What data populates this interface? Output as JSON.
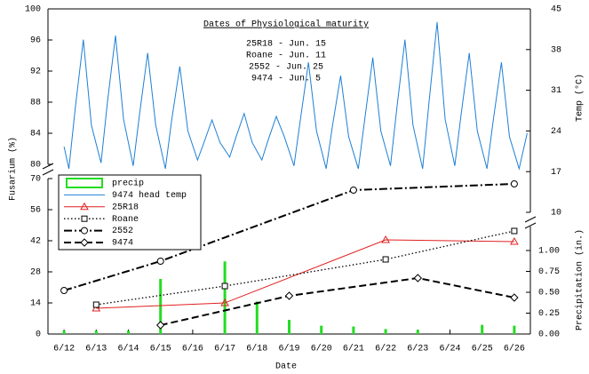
{
  "chart_data": {
    "type": "line",
    "xlabel": "Date",
    "ylabel": "Fusarium (%)",
    "y2label": "Temp (°C)",
    "y3label": "Precipitation (in.)",
    "annotation": {
      "title": "Dates of Physiological maturity",
      "lines": [
        "25R18 - Jun. 15",
        "Roane - Jun. 11",
        "2552 - Jun. 25",
        "9474 - Jun. 5"
      ]
    },
    "xlim": [
      11.5,
      26.5
    ],
    "xticks": [
      {
        "value": 12,
        "label": "6/12"
      },
      {
        "value": 13,
        "label": "6/13"
      },
      {
        "value": 14,
        "label": "6/14"
      },
      {
        "value": 15,
        "label": "6/15"
      },
      {
        "value": 16,
        "label": "6/16"
      },
      {
        "value": 17,
        "label": "6/17"
      },
      {
        "value": 18,
        "label": "6/18"
      },
      {
        "value": 19,
        "label": "6/19"
      },
      {
        "value": 20,
        "label": "6/20"
      },
      {
        "value": 21,
        "label": "6/21"
      },
      {
        "value": 22,
        "label": "6/22"
      },
      {
        "value": 23,
        "label": "6/23"
      },
      {
        "value": 24,
        "label": "6/24"
      },
      {
        "value": 25,
        "label": "6/25"
      },
      {
        "value": 26,
        "label": "6/26"
      }
    ],
    "ylim": [
      0,
      70
    ],
    "yticks": [
      0,
      14,
      28,
      42,
      56,
      70
    ],
    "ylim_upper": [
      80,
      100
    ],
    "yticks_upper": [
      80,
      84,
      88,
      92,
      96,
      100
    ],
    "y2lim": [
      10,
      45
    ],
    "y2ticks": [
      10,
      17,
      24,
      31,
      38,
      45
    ],
    "y3lim": [
      0,
      1
    ],
    "y3ticks": [
      {
        "value": 0,
        "label": "0.00"
      },
      {
        "value": 0.25,
        "label": "0.25"
      },
      {
        "value": 0.5,
        "label": "0.50"
      },
      {
        "value": 0.75,
        "label": "0.75"
      },
      {
        "value": 1,
        "label": "1.00"
      }
    ],
    "series": [
      {
        "name": "precip",
        "kind": "bar",
        "axis": "y3",
        "color": "#22dd22",
        "x": [
          12,
          13,
          14,
          15,
          17,
          18,
          19,
          20,
          21,
          22,
          23,
          25,
          26
        ],
        "values": [
          0.04,
          0.04,
          0.04,
          0.66,
          0.87,
          0.39,
          0.17,
          0.1,
          0.09,
          0.06,
          0.05,
          0.11,
          0.1
        ]
      },
      {
        "name": "9474 head temp",
        "kind": "line",
        "axis": "y2",
        "color": "#1e7fd6",
        "dash": "solid",
        "x": [
          12.0,
          12.15,
          12.35,
          12.6,
          12.85,
          13.15,
          13.35,
          13.6,
          13.85,
          14.15,
          14.35,
          14.6,
          14.85,
          15.15,
          15.35,
          15.6,
          15.85,
          16.15,
          16.35,
          16.6,
          16.85,
          17.15,
          17.35,
          17.6,
          17.85,
          18.15,
          18.35,
          18.6,
          18.85,
          19.15,
          19.35,
          19.6,
          19.85,
          20.15,
          20.35,
          20.6,
          20.85,
          21.15,
          21.35,
          21.6,
          21.85,
          22.15,
          22.35,
          22.6,
          22.85,
          23.15,
          23.35,
          23.6,
          23.85,
          24.15,
          24.35,
          24.6,
          24.85,
          25.15,
          25.35,
          25.6,
          25.85,
          26.15,
          26.4
        ],
        "values": [
          21.3,
          17.5,
          28,
          39.7,
          25,
          18.5,
          29,
          40.4,
          26,
          18,
          27,
          37.4,
          25,
          17.5,
          26,
          35.1,
          24,
          19,
          22,
          25.9,
          22,
          19.5,
          23,
          27,
          22,
          19,
          22.5,
          26.5,
          23,
          18,
          26,
          35.8,
          24,
          17.5,
          25,
          33.5,
          23,
          17.5,
          26,
          36.6,
          24,
          18,
          28,
          39.7,
          25,
          17.5,
          29,
          42.7,
          26,
          18,
          27,
          37.4,
          24,
          17.5,
          26,
          35.8,
          23,
          17.5,
          23.6
        ]
      },
      {
        "name": "25R18",
        "kind": "line",
        "axis": "y",
        "color": "#e02020",
        "dash": "solid",
        "marker": "triangle",
        "x": [
          13,
          17,
          22,
          26
        ],
        "values": [
          11.6,
          14,
          42.4,
          41.6
        ]
      },
      {
        "name": "Roane",
        "kind": "line",
        "axis": "y",
        "color": "#000000",
        "dash": "dotted",
        "marker": "square",
        "x": [
          13,
          17,
          22,
          26
        ],
        "values": [
          13.2,
          21.6,
          33.6,
          46.4
        ]
      },
      {
        "name": "2552",
        "kind": "line",
        "axis": "y",
        "color": "#000000",
        "dash": "dashdot",
        "marker": "circle",
        "x": [
          12,
          15,
          21,
          26
        ],
        "values": [
          19.6,
          32.8,
          64.8,
          67.6
        ]
      },
      {
        "name": "9474",
        "kind": "line",
        "axis": "y",
        "color": "#000000",
        "dash": "dashed",
        "marker": "diamond",
        "x": [
          15,
          19,
          23,
          26
        ],
        "values": [
          4,
          17.2,
          25.2,
          16.4
        ]
      }
    ]
  }
}
